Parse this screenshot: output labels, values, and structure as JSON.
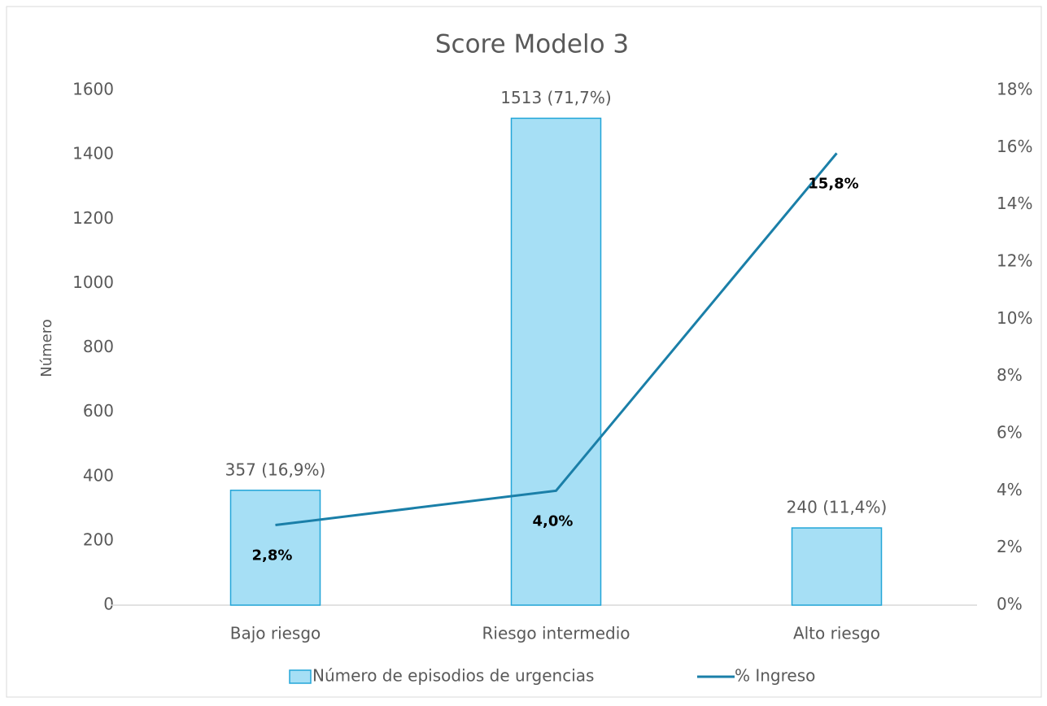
{
  "chart_data": {
    "type": "combo",
    "title": "Score Modelo 3",
    "y_label": "Número",
    "categories": [
      "Bajo riesgo",
      "Riesgo intermedio",
      "Alto riesgo"
    ],
    "series": [
      {
        "name": "Número de episodios de urgencias",
        "type": "bar",
        "color": "#a6dff5",
        "edge_color": "#23a6d8",
        "values": [
          357,
          1513,
          240
        ],
        "value_labels": [
          "357 (16,9%)",
          "1513 (71,7%)",
          "240 (11,4%)"
        ]
      },
      {
        "name": "% Ingreso",
        "type": "line",
        "axis": "y2",
        "color": "#1a7fa8",
        "values": [
          2.8,
          4.0,
          15.8
        ],
        "value_labels": [
          "2,8%",
          "4,0%",
          "15,8%"
        ]
      }
    ],
    "ylim": [
      0,
      1600
    ],
    "yticks": [
      0,
      200,
      400,
      600,
      800,
      1000,
      1200,
      1400,
      1600
    ],
    "y2lim": [
      0,
      18
    ],
    "y2ticks": [
      {
        "value": 0,
        "label": "0%"
      },
      {
        "value": 2,
        "label": "2%"
      },
      {
        "value": 4,
        "label": "4%"
      },
      {
        "value": 6,
        "label": "6%"
      },
      {
        "value": 8,
        "label": "8%"
      },
      {
        "value": 10,
        "label": "10%"
      },
      {
        "value": 12,
        "label": "12%"
      },
      {
        "value": 14,
        "label": "14%"
      },
      {
        "value": 16,
        "label": "16%"
      },
      {
        "value": 18,
        "label": "18%"
      }
    ],
    "legend": "bottom"
  }
}
